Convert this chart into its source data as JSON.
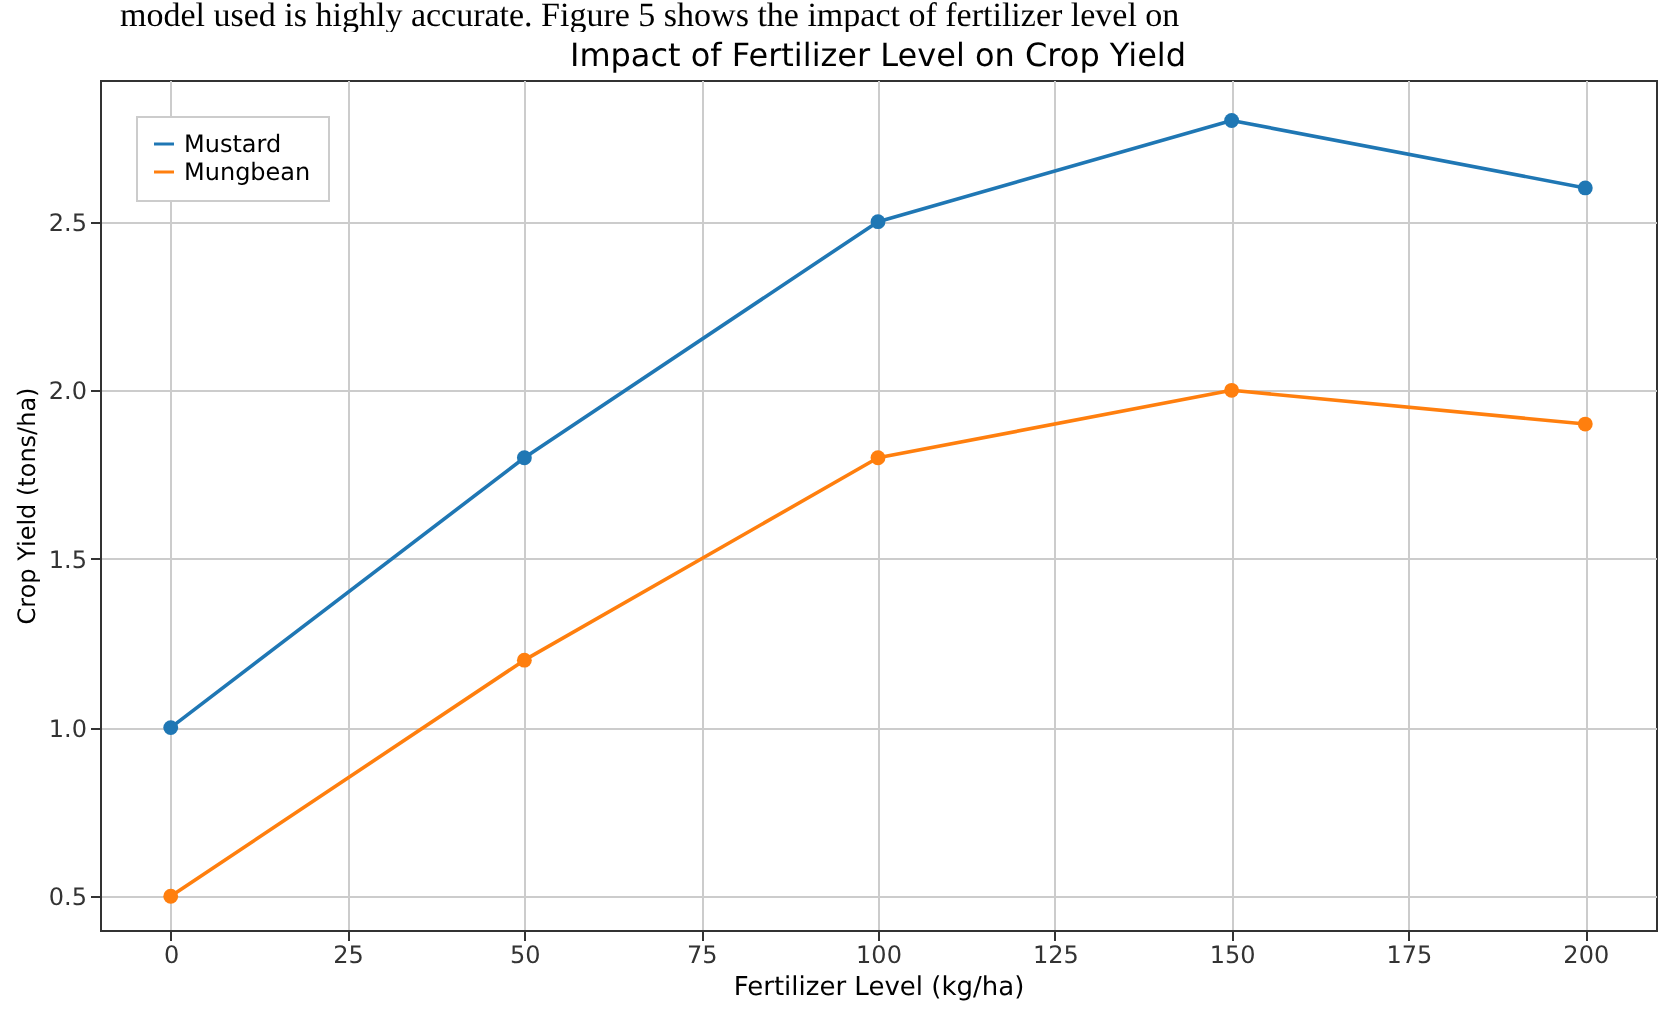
{
  "chart_data": {
    "type": "line",
    "title": "Impact of Fertilizer Level on Crop Yield",
    "xlabel": "Fertilizer Level (kg/ha)",
    "ylabel": "Crop Yield (tons/ha)",
    "annotations": [
      "model used is highly accurate. Figure 5 shows the impact of fertilizer level on"
    ],
    "x": [
      0,
      50,
      100,
      150,
      200
    ],
    "series": [
      {
        "name": "Mustard",
        "color": "#1f77b4",
        "values": [
          1.0,
          1.8,
          2.5,
          2.8,
          2.6
        ]
      },
      {
        "name": "Mungbean",
        "color": "#ff7f0e",
        "values": [
          0.5,
          1.2,
          1.8,
          2.0,
          1.9
        ]
      }
    ],
    "xlim": [
      -10,
      210
    ],
    "xticks": [
      0,
      25,
      50,
      75,
      100,
      125,
      150,
      175,
      200
    ],
    "ylim": [
      0.4,
      2.92
    ],
    "yticks": [
      0.5,
      {
        "value": 1,
        "label": "1.0"
      },
      1.5,
      {
        "value": 2,
        "label": "2.0"
      },
      2.5
    ],
    "grid": true,
    "legend": "top left",
    "marker": "circle",
    "line_style": "solid"
  }
}
